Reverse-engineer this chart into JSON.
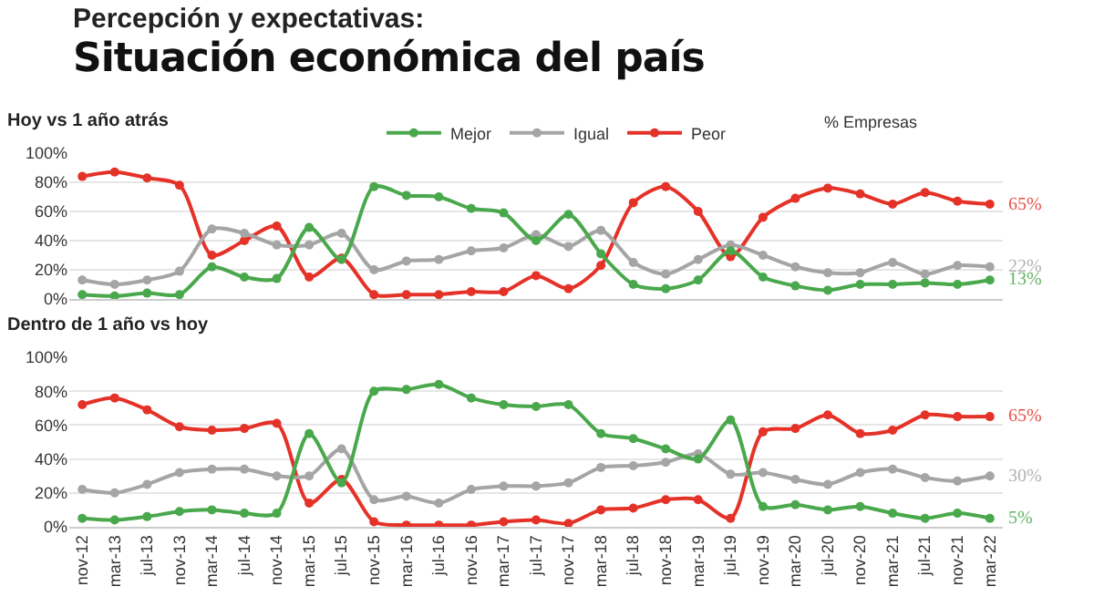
{
  "chart_data": [
    {
      "type": "line",
      "title": "Situación económica del país",
      "subtitle": "Hoy vs 1 año atrás",
      "annotations": [
        "Percepción y expectativas:",
        "% Empresas",
        {
          "text": "65%",
          "x": "mar-22",
          "y": 65
        },
        {
          "text": "22%",
          "x": "mar-22",
          "y": 22
        },
        {
          "text": "13%",
          "x": "mar-22",
          "y": 13
        }
      ],
      "categories": [
        "nov-12",
        "mar-13",
        "jul-13",
        "nov-13",
        "mar-14",
        "jul-14",
        "nov-14",
        "mar-15",
        "jul-15",
        "nov-15",
        "mar-16",
        "jul-16",
        "nov-16",
        "mar-17",
        "jul-17",
        "nov-17",
        "mar-18",
        "jul-18",
        "nov-18",
        "mar-19",
        "jul-19",
        "nov-19",
        "mar-20",
        "jul-20",
        "nov-20",
        "mar-21",
        "jul-21",
        "nov-21",
        "mar-22"
      ],
      "series": [
        {
          "name": "Mejor",
          "color": "#4aa84c",
          "values": [
            3,
            2,
            4,
            3,
            22,
            15,
            14,
            49,
            27,
            77,
            71,
            70,
            62,
            59,
            40,
            58,
            31,
            10,
            7,
            13,
            33,
            15,
            9,
            6,
            10,
            10,
            11,
            10,
            13
          ]
        },
        {
          "name": "Igual",
          "color": "#a5a5a5",
          "values": [
            13,
            10,
            13,
            19,
            48,
            45,
            37,
            37,
            45,
            20,
            26,
            27,
            33,
            35,
            44,
            36,
            47,
            25,
            17,
            27,
            37,
            30,
            22,
            18,
            18,
            25,
            17,
            23,
            22
          ]
        },
        {
          "name": "Peor",
          "color": "#e53228",
          "values": [
            84,
            87,
            83,
            78,
            30,
            40,
            50,
            15,
            28,
            3,
            3,
            3,
            5,
            5,
            16,
            7,
            23,
            66,
            77,
            60,
            29,
            56,
            69,
            76,
            72,
            65,
            73,
            67,
            65
          ]
        }
      ],
      "ylim": [
        0,
        100
      ],
      "yticks": [
        {
          "value": 0,
          "label": "0%"
        },
        {
          "value": 20,
          "label": "20%"
        },
        {
          "value": 40,
          "label": "40%"
        },
        {
          "value": 60,
          "label": "60%"
        },
        {
          "value": 80,
          "label": "80%"
        },
        {
          "value": 100,
          "label": "100%"
        }
      ],
      "grid": "y",
      "legend": "top",
      "marker": "circle",
      "line_style": "solid",
      "tick_labels": "y"
    },
    {
      "type": "line",
      "title": "Dentro de 1 año vs hoy",
      "annotations": [
        {
          "text": "65%",
          "x": "mar-22",
          "y": 65
        },
        {
          "text": "30%",
          "x": "mar-22",
          "y": 30
        },
        {
          "text": "5%",
          "x": "mar-22",
          "y": 5
        }
      ],
      "categories": [
        "nov-12",
        "mar-13",
        "jul-13",
        "nov-13",
        "mar-14",
        "jul-14",
        "nov-14",
        "mar-15",
        "jul-15",
        "nov-15",
        "mar-16",
        "jul-16",
        "nov-16",
        "mar-17",
        "jul-17",
        "nov-17",
        "mar-18",
        "jul-18",
        "nov-18",
        "mar-19",
        "jul-19",
        "nov-19",
        "mar-20",
        "jul-20",
        "nov-20",
        "mar-21",
        "jul-21",
        "nov-21",
        "mar-22"
      ],
      "series": [
        {
          "color": "#4aa84c",
          "values": [
            5,
            4,
            6,
            9,
            10,
            8,
            8,
            55,
            26,
            80,
            81,
            84,
            76,
            72,
            71,
            72,
            55,
            52,
            46,
            40,
            63,
            12,
            13,
            10,
            12,
            8,
            5,
            8,
            5
          ]
        },
        {
          "color": "#a5a5a5",
          "values": [
            22,
            20,
            25,
            32,
            34,
            34,
            30,
            30,
            46,
            16,
            18,
            14,
            22,
            24,
            24,
            26,
            35,
            36,
            38,
            43,
            31,
            32,
            28,
            25,
            32,
            34,
            29,
            27,
            30
          ]
        },
        {
          "color": "#e53228",
          "values": [
            72,
            76,
            69,
            59,
            57,
            58,
            61,
            14,
            28,
            3,
            1,
            1,
            1,
            3,
            4,
            2,
            10,
            11,
            16,
            16,
            5,
            56,
            58,
            66,
            55,
            57,
            66,
            65,
            65
          ]
        }
      ],
      "ylim": [
        0,
        100
      ],
      "yticks": [
        {
          "value": 0,
          "label": "0%"
        },
        {
          "value": 20,
          "label": "20%"
        },
        {
          "value": 40,
          "label": "40%"
        },
        {
          "value": 60,
          "label": "60%"
        },
        {
          "value": 80,
          "label": "80%"
        },
        {
          "value": 100,
          "label": "100%"
        }
      ],
      "grid": "y",
      "legend": false,
      "marker": "circle",
      "line_style": "solid"
    }
  ]
}
